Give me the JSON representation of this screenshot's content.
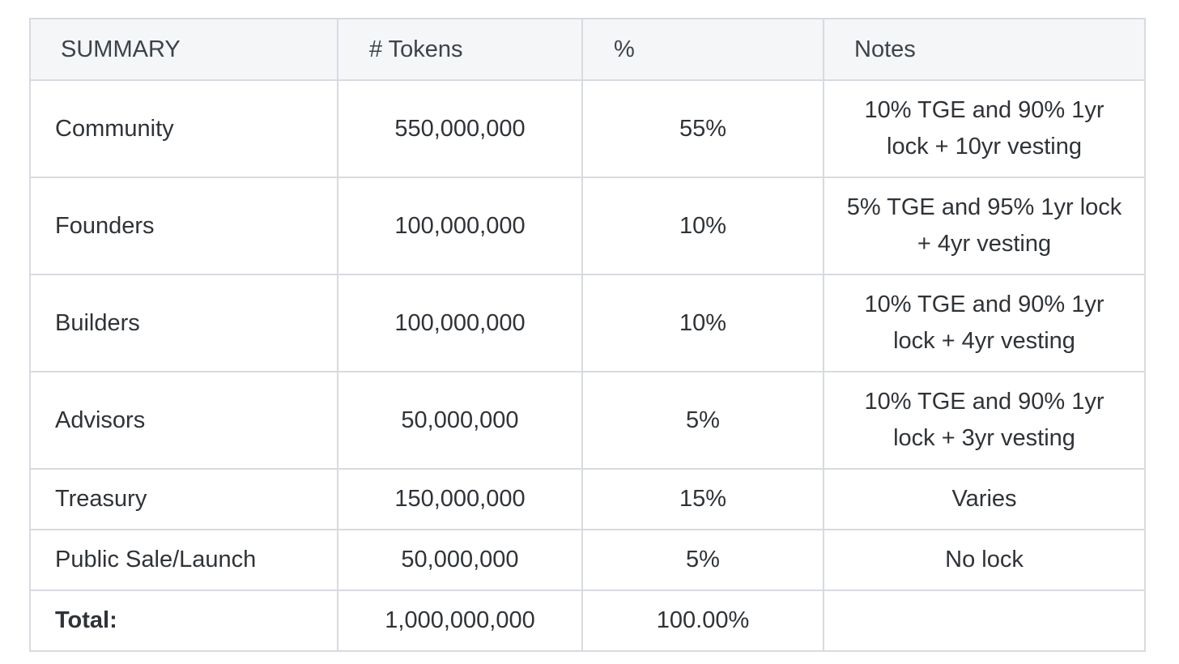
{
  "table": {
    "headers": [
      "SUMMARY",
      "# Tokens",
      "%",
      "Notes"
    ],
    "rows": [
      {
        "label": "Community",
        "tokens": "550,000,000",
        "percent": "55%",
        "notes": "10% TGE and 90% 1yr lock + 10yr vesting"
      },
      {
        "label": "Founders",
        "tokens": "100,000,000",
        "percent": "10%",
        "notes": "5% TGE and 95% 1yr lock + 4yr vesting"
      },
      {
        "label": "Builders",
        "tokens": "100,000,000",
        "percent": "10%",
        "notes": "10% TGE and 90% 1yr lock + 4yr vesting"
      },
      {
        "label": "Advisors",
        "tokens": "50,000,000",
        "percent": "5%",
        "notes": "10% TGE and 90% 1yr lock + 3yr vesting"
      },
      {
        "label": "Treasury",
        "tokens": "150,000,000",
        "percent": "15%",
        "notes": "Varies"
      },
      {
        "label": "Public Sale/Launch",
        "tokens": "50,000,000",
        "percent": "5%",
        "notes": "No lock"
      },
      {
        "label": "Total:",
        "tokens": "1,000,000,000",
        "percent": "100.00%",
        "notes": ""
      }
    ]
  }
}
